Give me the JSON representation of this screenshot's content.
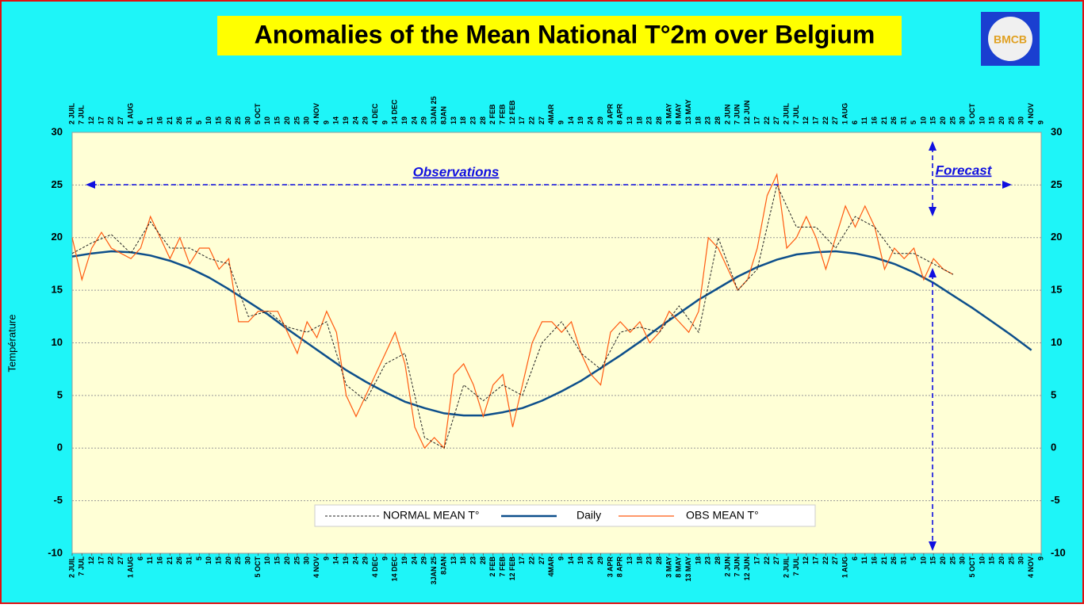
{
  "chart_data": {
    "type": "line",
    "title": "Anomalies of the Mean National T°2m over Belgium",
    "y_label": "Température",
    "logo": "BMCB",
    "annotations": [
      "Observations",
      "Forecast"
    ],
    "xlim": [
      0,
      495
    ],
    "ylim": [
      -10,
      30
    ],
    "yticks": [
      -10,
      -5,
      0,
      5,
      10,
      15,
      20,
      25,
      30
    ],
    "grid": true,
    "xticks": [
      {
        "value": 0,
        "label": "2 JUIL"
      },
      {
        "value": 5,
        "label": "7 JUL"
      },
      {
        "value": 10,
        "label": "12"
      },
      {
        "value": 15,
        "label": "17"
      },
      {
        "value": 20,
        "label": "22"
      },
      {
        "value": 25,
        "label": "27"
      },
      {
        "value": 30,
        "label": "1 AUG"
      },
      {
        "value": 35,
        "label": "6"
      },
      {
        "value": 40,
        "label": "11"
      },
      {
        "value": 45,
        "label": "16"
      },
      {
        "value": 50,
        "label": "21"
      },
      {
        "value": 55,
        "label": "26"
      },
      {
        "value": 60,
        "label": "31"
      },
      {
        "value": 65,
        "label": "5"
      },
      {
        "value": 70,
        "label": "10"
      },
      {
        "value": 75,
        "label": "15"
      },
      {
        "value": 80,
        "label": "20"
      },
      {
        "value": 85,
        "label": "25"
      },
      {
        "value": 90,
        "label": "30"
      },
      {
        "value": 95,
        "label": "5 OCT"
      },
      {
        "value": 100,
        "label": "10"
      },
      {
        "value": 105,
        "label": "15"
      },
      {
        "value": 110,
        "label": "20"
      },
      {
        "value": 115,
        "label": "25"
      },
      {
        "value": 120,
        "label": "30"
      },
      {
        "value": 125,
        "label": "4 NOV"
      },
      {
        "value": 130,
        "label": "9"
      },
      {
        "value": 135,
        "label": "14"
      },
      {
        "value": 140,
        "label": "19"
      },
      {
        "value": 145,
        "label": "24"
      },
      {
        "value": 150,
        "label": "29"
      },
      {
        "value": 155,
        "label": "4 DEC"
      },
      {
        "value": 160,
        "label": "9"
      },
      {
        "value": 165,
        "label": "14 DEC"
      },
      {
        "value": 170,
        "label": "19"
      },
      {
        "value": 175,
        "label": "24"
      },
      {
        "value": 180,
        "label": "29"
      },
      {
        "value": 185,
        "label": "3JAN 25"
      },
      {
        "value": 190,
        "label": "8JAN"
      },
      {
        "value": 195,
        "label": "13"
      },
      {
        "value": 200,
        "label": "18"
      },
      {
        "value": 205,
        "label": "23"
      },
      {
        "value": 210,
        "label": "28"
      },
      {
        "value": 215,
        "label": "2 FEB"
      },
      {
        "value": 220,
        "label": "7 FEB"
      },
      {
        "value": 225,
        "label": "12 FEB"
      },
      {
        "value": 230,
        "label": "17"
      },
      {
        "value": 235,
        "label": "22"
      },
      {
        "value": 240,
        "label": "27"
      },
      {
        "value": 245,
        "label": "4MAR"
      },
      {
        "value": 250,
        "label": "9"
      },
      {
        "value": 255,
        "label": "14"
      },
      {
        "value": 260,
        "label": "19"
      },
      {
        "value": 265,
        "label": "24"
      },
      {
        "value": 270,
        "label": "29"
      },
      {
        "value": 275,
        "label": "3 APR"
      },
      {
        "value": 280,
        "label": "8 APR"
      },
      {
        "value": 285,
        "label": "13"
      },
      {
        "value": 290,
        "label": "18"
      },
      {
        "value": 295,
        "label": "23"
      },
      {
        "value": 300,
        "label": "28"
      },
      {
        "value": 305,
        "label": "3 MAY"
      },
      {
        "value": 310,
        "label": "8 MAY"
      },
      {
        "value": 315,
        "label": "13 MAY"
      },
      {
        "value": 320,
        "label": "18"
      },
      {
        "value": 325,
        "label": "23"
      },
      {
        "value": 330,
        "label": "28"
      },
      {
        "value": 335,
        "label": "2 JUN"
      },
      {
        "value": 340,
        "label": "7 JUN"
      },
      {
        "value": 345,
        "label": "12 JUN"
      },
      {
        "value": 350,
        "label": "17"
      },
      {
        "value": 355,
        "label": "22"
      },
      {
        "value": 360,
        "label": "27"
      },
      {
        "value": 365,
        "label": "2 JUIL"
      },
      {
        "value": 370,
        "label": "7 JUL"
      },
      {
        "value": 375,
        "label": "12"
      },
      {
        "value": 380,
        "label": "17"
      },
      {
        "value": 385,
        "label": "22"
      },
      {
        "value": 390,
        "label": "27"
      },
      {
        "value": 395,
        "label": "1 AUG"
      },
      {
        "value": 400,
        "label": "6"
      },
      {
        "value": 405,
        "label": "11"
      },
      {
        "value": 410,
        "label": "16"
      },
      {
        "value": 415,
        "label": "21"
      },
      {
        "value": 420,
        "label": "26"
      },
      {
        "value": 425,
        "label": "31"
      },
      {
        "value": 430,
        "label": "5"
      },
      {
        "value": 435,
        "label": "10"
      },
      {
        "value": 440,
        "label": "15"
      },
      {
        "value": 445,
        "label": "20"
      },
      {
        "value": 450,
        "label": "25"
      },
      {
        "value": 455,
        "label": "30"
      },
      {
        "value": 460,
        "label": "5 OCT"
      },
      {
        "value": 465,
        "label": "10"
      },
      {
        "value": 470,
        "label": "15"
      },
      {
        "value": 475,
        "label": "20"
      },
      {
        "value": 480,
        "label": "25"
      },
      {
        "value": 485,
        "label": "30"
      },
      {
        "value": 490,
        "label": "4 NOV"
      },
      {
        "value": 495,
        "label": "9"
      }
    ],
    "series": [
      {
        "name": "NORMAL MEAN T°",
        "color": "#222222",
        "style": "dashed",
        "x": [
          0,
          10,
          20,
          30,
          40,
          50,
          60,
          70,
          80,
          90,
          100,
          110,
          120,
          130,
          140,
          150,
          160,
          170,
          180,
          190,
          200,
          210,
          220,
          230,
          240,
          250,
          260,
          270,
          280,
          290,
          300,
          310,
          320,
          330,
          340,
          350,
          360,
          370,
          380,
          390,
          400,
          410,
          420,
          430,
          440,
          450
        ],
        "values": [
          18.5,
          19.5,
          20.3,
          18.5,
          21.5,
          19,
          19,
          18,
          17.5,
          12.5,
          13,
          11.5,
          11,
          12,
          6,
          4.5,
          8,
          9,
          1,
          0,
          6,
          4.5,
          6,
          5,
          10,
          12,
          9,
          7.5,
          11,
          11.5,
          11,
          13.5,
          11,
          20,
          15,
          17,
          25,
          21,
          21,
          19,
          22,
          21,
          18.5,
          18.5,
          17.5,
          16.5
        ]
      },
      {
        "name": "Daily",
        "color": "#0d4f8b",
        "style": "solid",
        "x": [
          0,
          10,
          20,
          30,
          40,
          50,
          60,
          70,
          80,
          90,
          100,
          110,
          120,
          130,
          140,
          150,
          160,
          170,
          180,
          190,
          200,
          210,
          220,
          230,
          240,
          250,
          260,
          270,
          280,
          290,
          300,
          310,
          320,
          330,
          340,
          350,
          360,
          370,
          380,
          390,
          400,
          410,
          420,
          430,
          440,
          450,
          460,
          470,
          480,
          490
        ],
        "values": [
          18.2,
          18.5,
          18.7,
          18.6,
          18.3,
          17.8,
          17.1,
          16.2,
          15.1,
          13.9,
          12.7,
          11.3,
          10,
          8.7,
          7.4,
          6.3,
          5.3,
          4.4,
          3.8,
          3.3,
          3.1,
          3.1,
          3.4,
          3.8,
          4.5,
          5.4,
          6.4,
          7.6,
          8.8,
          10.1,
          11.5,
          12.8,
          14.1,
          15.2,
          16.3,
          17.2,
          17.9,
          18.4,
          18.6,
          18.7,
          18.5,
          18.1,
          17.5,
          16.7,
          15.7,
          14.5,
          13.3,
          12,
          10.7,
          9.3
        ]
      },
      {
        "name": "OBS MEAN T°",
        "color": "#ff5a10",
        "style": "solid",
        "x": [
          0,
          5,
          10,
          15,
          20,
          25,
          30,
          35,
          40,
          45,
          50,
          55,
          60,
          65,
          70,
          75,
          80,
          85,
          90,
          95,
          100,
          105,
          110,
          115,
          120,
          125,
          130,
          135,
          140,
          145,
          150,
          155,
          160,
          165,
          170,
          175,
          180,
          185,
          190,
          195,
          200,
          205,
          210,
          215,
          220,
          225,
          230,
          235,
          240,
          245,
          250,
          255,
          260,
          265,
          270,
          275,
          280,
          285,
          290,
          295,
          300,
          305,
          310,
          315,
          320,
          325,
          330,
          335,
          340,
          345,
          350,
          355,
          360,
          365,
          370,
          375,
          380,
          385,
          390,
          395,
          400,
          405,
          410,
          415,
          420,
          425,
          430,
          435,
          440,
          445,
          450
        ],
        "values": [
          20,
          16,
          19,
          20.5,
          19,
          18.5,
          18,
          19,
          22,
          20,
          18,
          20,
          17.5,
          19,
          19,
          17,
          18,
          12,
          12,
          13,
          13,
          13,
          11,
          9,
          12,
          10.5,
          13,
          11,
          5,
          3,
          5,
          7,
          9,
          11,
          8,
          2,
          0,
          1,
          0,
          7,
          8,
          6,
          3,
          6,
          7,
          2,
          6,
          10,
          12,
          12,
          11,
          12,
          9,
          7,
          6,
          11,
          12,
          11,
          12,
          10,
          11,
          13,
          12,
          11,
          13,
          20,
          19,
          17,
          15,
          16,
          19,
          24,
          26,
          19,
          20,
          22,
          20,
          17,
          20,
          23,
          21,
          23,
          21,
          17,
          19,
          18,
          19,
          16,
          18,
          17,
          16.5
        ]
      }
    ]
  }
}
